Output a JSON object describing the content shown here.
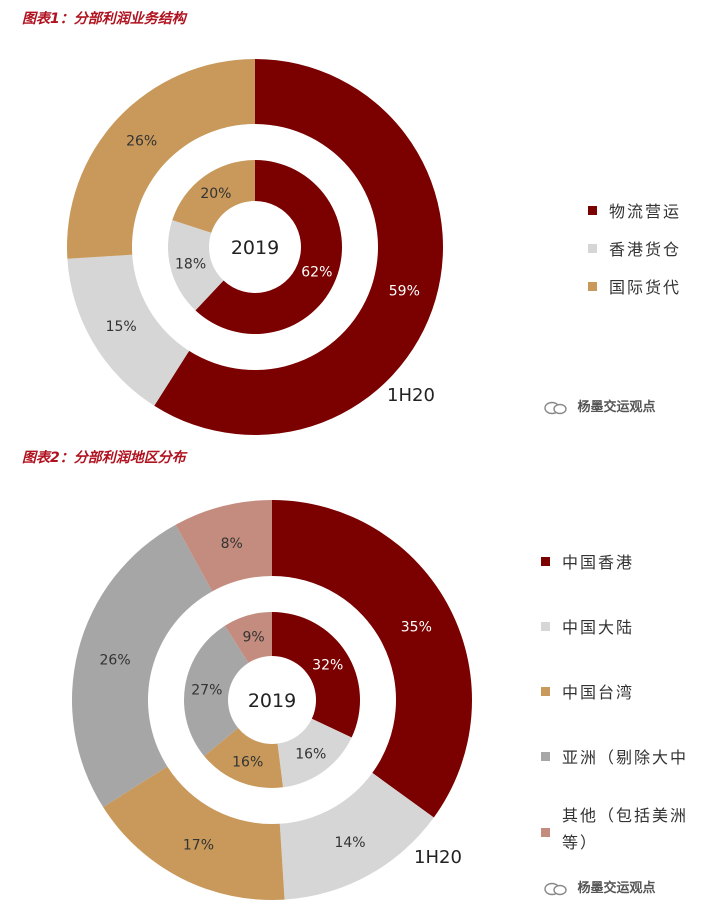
{
  "figure1": {
    "title": "图表1：分部利润业务结构"
  },
  "figure2": {
    "title": "图表2：分部利润地区分布"
  },
  "watermark": "杨墨交运观点",
  "chart_data": [
    {
      "type": "pie",
      "subtype": "donut",
      "center_label": "2019",
      "outer_ring_label": "1H20",
      "legend_position": "right",
      "categories": [
        "物流营运",
        "香港货仓",
        "国际货代"
      ],
      "colors": [
        "#7b0000",
        "#d6d6d6",
        "#c8995a"
      ],
      "label_colors": [
        "#ffffff",
        "#333333",
        "#333333"
      ],
      "series": [
        {
          "values": [
            62,
            18,
            20
          ],
          "labels": [
            "62%",
            "18%",
            "20%"
          ]
        },
        {
          "values": [
            59,
            15,
            26
          ],
          "labels": [
            "59%",
            "15%",
            "26%"
          ]
        }
      ]
    },
    {
      "type": "pie",
      "subtype": "donut",
      "center_label": "2019",
      "outer_ring_label": "1H20",
      "legend_position": "right",
      "categories": [
        "中国香港",
        "中国大陆",
        "中国台湾",
        "亚洲（剔除大中",
        "其他（包括美洲等）"
      ],
      "colors": [
        "#7b0000",
        "#d6d6d6",
        "#c8995a",
        "#a6a6a6",
        "#c48c7e"
      ],
      "label_colors": [
        "#ffffff",
        "#333333",
        "#333333",
        "#333333",
        "#333333"
      ],
      "series": [
        {
          "values": [
            32,
            16,
            16,
            27,
            9
          ],
          "labels": [
            "32%",
            "16%",
            "16%",
            "27%",
            "9%"
          ]
        },
        {
          "values": [
            35,
            14,
            17,
            26,
            8
          ],
          "labels": [
            "35%",
            "14%",
            "17%",
            "26%",
            "8%"
          ]
        }
      ]
    }
  ]
}
